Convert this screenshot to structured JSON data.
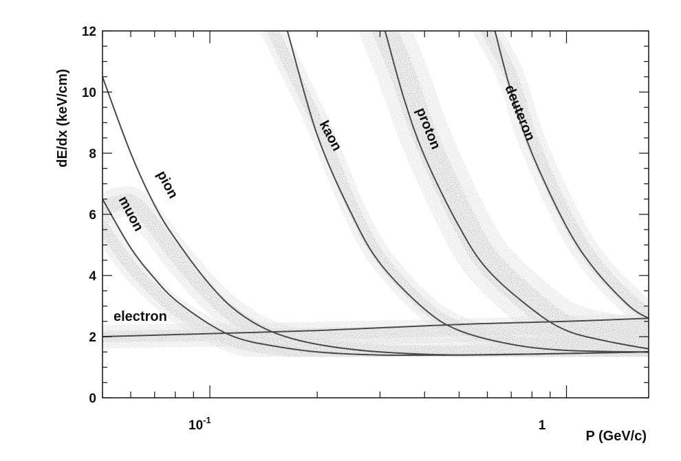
{
  "chart_data": {
    "type": "scatter",
    "title": "",
    "xlabel": "P (GeV/c)",
    "ylabel": "dE/dx (keV/cm)",
    "x_scale": "log",
    "xlim": [
      0.05,
      1.7
    ],
    "ylim": [
      0,
      12
    ],
    "grid": false,
    "legend": "none",
    "x_tick_labels": [
      {
        "value": 0.1,
        "base": "10",
        "exp": "-1"
      },
      {
        "value": 1,
        "base": "1",
        "exp": ""
      }
    ],
    "y_ticks": [
      0,
      2,
      4,
      6,
      8,
      10,
      12
    ],
    "y_tick_labels": [
      "0",
      "2",
      "4",
      "6",
      "8",
      "10",
      "12"
    ],
    "annotations": {
      "electron": "electron",
      "muon": "muon",
      "pion": "pion",
      "kaon": "kaon",
      "proton": "proton",
      "deuteron": "deuteron"
    },
    "series": [
      {
        "name": "electron",
        "x": [
          0.05,
          0.1,
          0.2,
          0.5,
          1.0,
          1.7
        ],
        "y": [
          2.0,
          2.1,
          2.2,
          2.4,
          2.5,
          2.6
        ]
      },
      {
        "name": "muon",
        "x": [
          0.05,
          0.06,
          0.07,
          0.08,
          0.1,
          0.12,
          0.15,
          0.2,
          0.3,
          0.5,
          1.0,
          1.7
        ],
        "y": [
          6.5,
          4.9,
          3.9,
          3.2,
          2.4,
          1.95,
          1.7,
          1.5,
          1.4,
          1.4,
          1.45,
          1.5
        ]
      },
      {
        "name": "pion",
        "x": [
          0.05,
          0.06,
          0.07,
          0.08,
          0.1,
          0.12,
          0.15,
          0.2,
          0.3,
          0.5,
          1.0,
          1.7
        ],
        "y": [
          10.5,
          8.0,
          6.3,
          5.2,
          3.7,
          2.8,
          2.15,
          1.75,
          1.5,
          1.4,
          1.45,
          1.5
        ]
      },
      {
        "name": "kaon",
        "x": [
          0.165,
          0.2,
          0.25,
          0.3,
          0.4,
          0.5,
          0.7,
          1.0,
          1.7
        ],
        "y": [
          12.0,
          8.6,
          6.0,
          4.4,
          2.9,
          2.2,
          1.75,
          1.55,
          1.5
        ]
      },
      {
        "name": "proton",
        "x": [
          0.31,
          0.35,
          0.4,
          0.5,
          0.6,
          0.8,
          1.0,
          1.3,
          1.7
        ],
        "y": [
          12.0,
          9.8,
          7.9,
          5.6,
          4.2,
          2.9,
          2.2,
          1.85,
          1.6
        ]
      },
      {
        "name": "deuteron",
        "x": [
          0.63,
          0.7,
          0.8,
          1.0,
          1.2,
          1.5,
          1.7
        ],
        "y": [
          12.0,
          10.0,
          8.0,
          5.6,
          4.2,
          3.0,
          2.6
        ]
      }
    ],
    "bands": [
      {
        "name": "electron-band",
        "x": [
          0.05,
          0.1,
          0.2,
          0.5,
          1.0,
          1.7
        ],
        "y": [
          2.0,
          2.05,
          2.1,
          2.2,
          2.3,
          2.35
        ],
        "spread": 0.35
      },
      {
        "name": "muon-band",
        "x": [
          0.05,
          0.06,
          0.07,
          0.08,
          0.1,
          0.12,
          0.15,
          0.2,
          0.3,
          0.5,
          1.0,
          1.7
        ],
        "y": [
          5.6,
          4.3,
          3.5,
          2.9,
          2.2,
          1.8,
          1.6,
          1.45,
          1.35,
          1.35,
          1.4,
          1.45
        ],
        "spread": 0.35
      },
      {
        "name": "pion-band",
        "x": [
          0.05,
          0.06,
          0.07,
          0.08,
          0.1,
          0.12,
          0.15,
          0.2,
          0.3,
          0.5,
          1.0,
          1.7
        ],
        "y": [
          6.2,
          6.4,
          5.6,
          4.7,
          3.4,
          2.6,
          2.0,
          1.7,
          1.5,
          1.45,
          1.5,
          1.55
        ],
        "spread": 0.45
      },
      {
        "name": "kaon-band",
        "x": [
          0.15,
          0.2,
          0.25,
          0.3,
          0.4,
          0.5,
          0.7,
          1.0,
          1.7
        ],
        "y": [
          12.0,
          9.0,
          6.3,
          4.6,
          3.0,
          2.3,
          1.85,
          1.7,
          1.65
        ],
        "spread": 0.35
      },
      {
        "name": "proton-band",
        "x": [
          0.31,
          0.35,
          0.4,
          0.5,
          0.6,
          0.8,
          1.0,
          1.3,
          1.7
        ],
        "y": [
          12.0,
          10.5,
          8.6,
          6.1,
          4.5,
          3.1,
          2.3,
          1.95,
          1.75
        ],
        "spread": 0.75
      },
      {
        "name": "deuteron-band",
        "x": [
          0.6,
          0.7,
          0.8,
          1.0,
          1.2,
          1.5,
          1.7
        ],
        "y": [
          12.0,
          10.5,
          8.4,
          5.9,
          4.4,
          3.2,
          2.7
        ],
        "spread": 0.4
      }
    ],
    "colors": {
      "curve": "#4a4a4a",
      "band": "#7a7a7a",
      "axis": "#111111",
      "background": "#ffffff"
    }
  }
}
